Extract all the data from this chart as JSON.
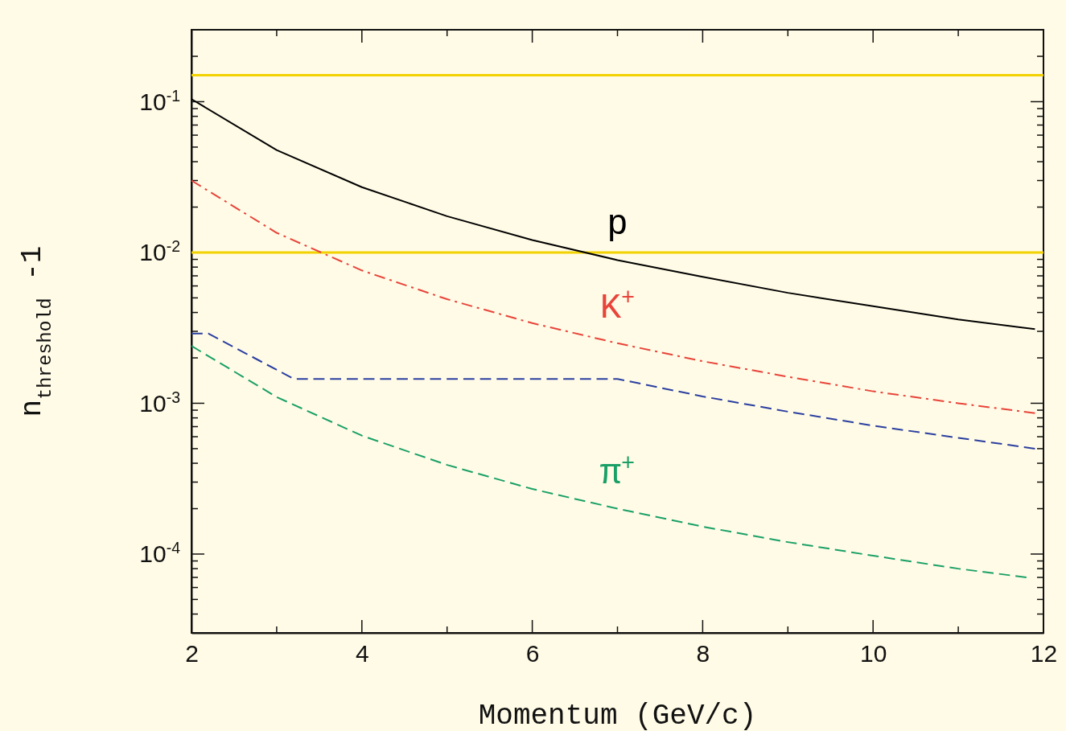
{
  "chart_data": {
    "type": "line",
    "xlabel": "Momentum (GeV/c)",
    "ylabel": "n$_{threshold}$ -1",
    "log": "y",
    "grid": false,
    "xlim": [
      2,
      12
    ],
    "xticks": [
      2,
      {
        "value": 3,
        "label": null
      },
      4,
      {
        "value": 5,
        "label": null
      },
      6,
      {
        "value": 7,
        "label": null
      },
      8,
      {
        "value": 9,
        "label": null
      },
      10,
      {
        "value": 11,
        "label": null
      },
      12
    ],
    "ylim": [
      3e-05,
      0.3
    ],
    "yticks": [
      {
        "value": 3e-05,
        "label": null
      },
      {
        "value": 4e-05,
        "label": null
      },
      {
        "value": 5e-05,
        "label": null
      },
      {
        "value": 6e-05,
        "label": null
      },
      {
        "value": 7e-05,
        "label": null
      },
      {
        "value": 8e-05,
        "label": null
      },
      {
        "value": 9e-05,
        "label": null
      },
      {
        "value": 0.0001,
        "label": "10$^{-4}$"
      },
      {
        "value": 0.0002,
        "label": null
      },
      {
        "value": 0.0003,
        "label": null
      },
      {
        "value": 0.0004,
        "label": null
      },
      {
        "value": 0.0005,
        "label": null
      },
      {
        "value": 0.0006,
        "label": null
      },
      {
        "value": 0.0007,
        "label": null
      },
      {
        "value": 0.0008,
        "label": null
      },
      {
        "value": 0.0009,
        "label": null
      },
      {
        "value": 0.001,
        "label": "10$^{-3}$"
      },
      {
        "value": 0.002,
        "label": null
      },
      {
        "value": 0.003,
        "label": null
      },
      {
        "value": 0.004,
        "label": null
      },
      {
        "value": 0.005,
        "label": null
      },
      {
        "value": 0.006,
        "label": null
      },
      {
        "value": 0.007,
        "label": null
      },
      {
        "value": 0.008,
        "label": null
      },
      {
        "value": 0.009,
        "label": null
      },
      {
        "value": 0.01,
        "label": "10$^{-2}$"
      },
      {
        "value": 0.02,
        "label": null
      },
      {
        "value": 0.03,
        "label": null
      },
      {
        "value": 0.04,
        "label": null
      },
      {
        "value": 0.05,
        "label": null
      },
      {
        "value": 0.06,
        "label": null
      },
      {
        "value": 0.07,
        "label": null
      },
      {
        "value": 0.08,
        "label": null
      },
      {
        "value": 0.09,
        "label": null
      },
      {
        "value": 0.1,
        "label": "10$^{-1}$"
      },
      {
        "value": 0.2,
        "label": null
      },
      {
        "value": 0.3,
        "label": null
      }
    ],
    "ref_lines": [
      {
        "axis": "y",
        "value": 0.15,
        "color": "#f2d200"
      },
      {
        "axis": "y",
        "value": 0.01,
        "color": "#f2d200"
      }
    ],
    "series": [
      {
        "name": "p",
        "color": "#000000",
        "line_style": "solid",
        "x": [
          2,
          3,
          4,
          5,
          6,
          7,
          8,
          9,
          10,
          11,
          11.9
        ],
        "values": [
          0.104,
          0.0478,
          0.0271,
          0.0174,
          0.0121,
          0.0089,
          0.0069,
          0.0054,
          0.0044,
          0.0036,
          0.0031
        ]
      },
      {
        "name": "K$^{+}$",
        "color": "#e8443a",
        "line_style": "dashdot",
        "x": [
          2,
          3,
          4,
          5,
          6,
          7,
          8,
          9,
          10,
          11,
          11.9
        ],
        "values": [
          0.03,
          0.0135,
          0.0076,
          0.0049,
          0.0034,
          0.0025,
          0.0019,
          0.0015,
          0.0012,
          0.001,
          0.00086
        ]
      },
      {
        "color": "#2b3fa0",
        "line_style": "dashed",
        "x": [
          2,
          2.2,
          3.2,
          7,
          8,
          9,
          10,
          11,
          11.9
        ],
        "values": [
          0.0029,
          0.0029,
          0.00145,
          0.00145,
          0.00111,
          0.00088,
          0.00071,
          0.00059,
          0.0005
        ]
      },
      {
        "name": "π$^{+}$",
        "color": "#1aa067",
        "line_style": "dashed",
        "x": [
          2,
          3,
          4,
          5,
          6,
          7,
          8,
          9,
          10,
          11,
          11.8
        ],
        "values": [
          0.0024,
          0.0011,
          0.00061,
          0.00039,
          0.00027,
          0.0002,
          0.000152,
          0.00012,
          9.75e-05,
          8e-05,
          7e-05
        ]
      }
    ]
  }
}
